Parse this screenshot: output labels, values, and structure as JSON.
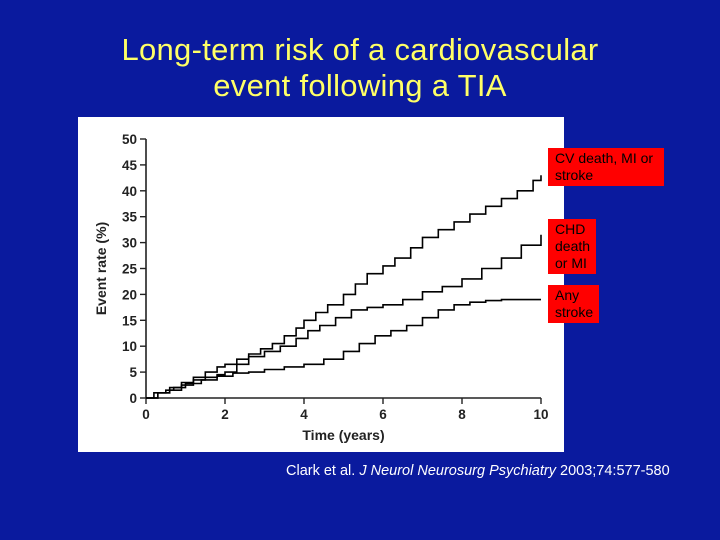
{
  "slide": {
    "title_line1": "Long-term risk of a cardiovascular",
    "title_line2": "event following a TIA",
    "citation_authors": "Clark et al. ",
    "citation_journal": "J Neurol Neurosurg Psychiatry",
    "citation_rest": " 2003;74:577-580"
  },
  "colors": {
    "background": "#0a1a9e",
    "title": "#ffff66",
    "legend_box": "#ff0000",
    "panel": "#ffffff",
    "series_line": "#000000"
  },
  "chart_data": {
    "type": "line",
    "step": true,
    "title": "",
    "xlabel": "Time (years)",
    "ylabel": "Event rate (%)",
    "xlim": [
      0,
      10
    ],
    "ylim": [
      0,
      50
    ],
    "xticks": [
      0,
      2,
      4,
      6,
      8,
      10
    ],
    "yticks": [
      0,
      5,
      10,
      15,
      20,
      25,
      30,
      35,
      40,
      45,
      50
    ],
    "grid": false,
    "legend": "right, red label boxes beside line ends",
    "series": [
      {
        "name": "CV death, MI or stroke",
        "x": [
          0,
          0.2,
          0.5,
          0.7,
          0.9,
          1.2,
          1.5,
          1.8,
          2.0,
          2.3,
          2.6,
          2.9,
          3.2,
          3.5,
          3.8,
          4.0,
          4.3,
          4.6,
          5.0,
          5.3,
          5.6,
          6.0,
          6.3,
          6.7,
          7.0,
          7.4,
          7.8,
          8.2,
          8.6,
          9.0,
          9.4,
          9.8,
          10
        ],
        "y": [
          0,
          1,
          1.5,
          2,
          3,
          4,
          5,
          6,
          6.5,
          7.5,
          8.5,
          9.5,
          10.5,
          12,
          13.5,
          15,
          16.5,
          18,
          20,
          22,
          24,
          25.5,
          27,
          29,
          31,
          32.5,
          34,
          35.5,
          37,
          38.5,
          40,
          42,
          43
        ]
      },
      {
        "name": "CHD death or MI",
        "x": [
          0,
          0.3,
          0.6,
          0.9,
          1.2,
          1.5,
          1.8,
          2.0,
          2.3,
          2.6,
          3.0,
          3.4,
          3.8,
          4.1,
          4.4,
          4.8,
          5.2,
          5.6,
          6.0,
          6.5,
          7.0,
          7.5,
          8.0,
          8.5,
          9.0,
          9.5,
          10
        ],
        "y": [
          0,
          1,
          1.5,
          2.5,
          3.5,
          4,
          4.5,
          5,
          6.5,
          8,
          9,
          10,
          11.5,
          13,
          14,
          15.5,
          17,
          17.5,
          18,
          19,
          20.5,
          21.5,
          23,
          25,
          27,
          29.5,
          31.5
        ]
      },
      {
        "name": "Any stroke",
        "x": [
          0,
          0.3,
          0.6,
          1.0,
          1.4,
          1.8,
          2.2,
          2.6,
          3.0,
          3.5,
          4.0,
          4.5,
          5.0,
          5.4,
          5.8,
          6.2,
          6.6,
          7.0,
          7.4,
          7.8,
          8.2,
          8.6,
          9.0,
          9.4,
          9.8,
          10
        ],
        "y": [
          0,
          1,
          2,
          2.8,
          3.5,
          4.2,
          4.8,
          5,
          5.5,
          6,
          6.5,
          7.5,
          9,
          10.5,
          12,
          13,
          14,
          15.5,
          17,
          18,
          18.5,
          18.8,
          19,
          19,
          19,
          19
        ]
      }
    ]
  }
}
